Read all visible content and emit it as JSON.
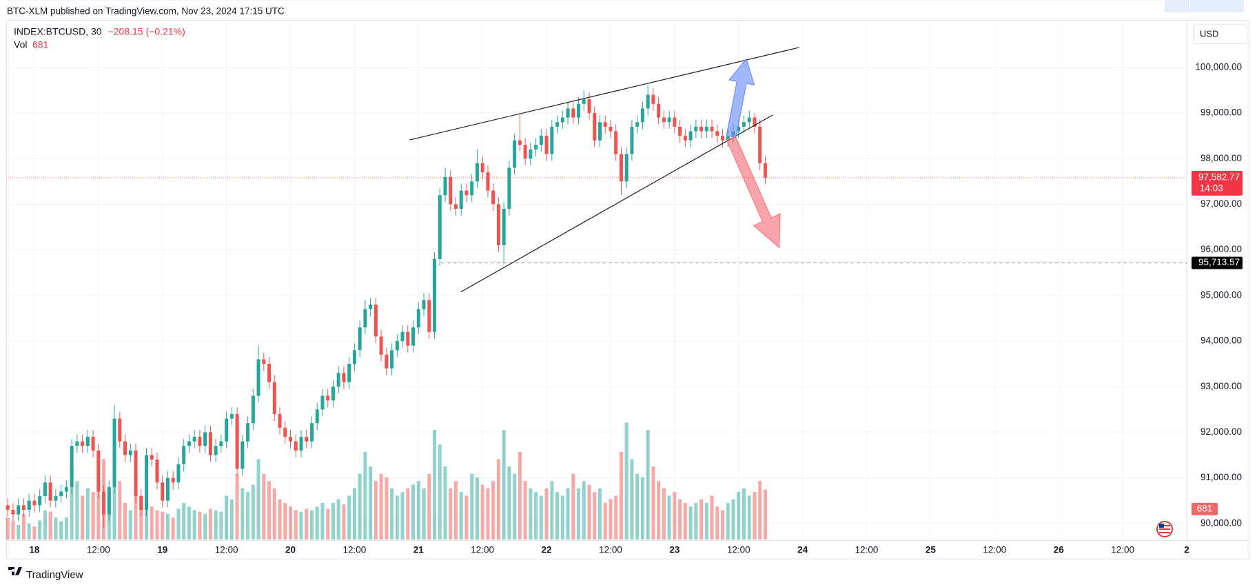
{
  "header": {
    "text": "BTC-XLM published on TradingView.com, Nov 23, 2024 17:15 UTC"
  },
  "footer": {
    "brand": "TradingView"
  },
  "chart_data": {
    "type": "candlestick",
    "symbol": "INDEX:BTCUSD, 30",
    "change": {
      "value": -208.15,
      "label": "−208.15"
    },
    "change_pct": {
      "value": -0.21,
      "label": "(−0.21%)"
    },
    "volume_label": "Vol",
    "volume_last": 681,
    "currency": "USD",
    "high": [
      90550,
      90450,
      90550,
      90550,
      90650,
      90650,
      90750,
      91050,
      91050,
      90750,
      90850,
      90950,
      91850,
      91950,
      91950,
      92050,
      92050,
      91750,
      90850,
      90950,
      92600,
      92450,
      91950,
      91750,
      91750,
      90750,
      91650,
      91650,
      91550,
      91050,
      91150,
      91150,
      91450,
      91850,
      91950,
      92050,
      92050,
      92150,
      92150,
      91850,
      91950,
      92450,
      92550,
      92550,
      91950,
      92350,
      92950,
      93900,
      93750,
      93650,
      93250,
      92550,
      92250,
      92050,
      91950,
      92050,
      92050,
      92350,
      92650,
      92950,
      92950,
      93150,
      93450,
      93450,
      93650,
      93950,
      94450,
      94900,
      94950,
      94950,
      94250,
      93850,
      93950,
      94150,
      94350,
      94350,
      94450,
      94850,
      95050,
      95050,
      95950,
      97350,
      97800,
      97750,
      97150,
      97450,
      97450,
      97650,
      98200,
      98050,
      97850,
      97450,
      97150,
      97050,
      97950,
      98550,
      99000,
      98450,
      98350,
      98450,
      98650,
      98650,
      98850,
      98950,
      99050,
      99250,
      99250,
      99350,
      99500,
      99450,
      99150,
      98950,
      98950,
      98850,
      98750,
      98250,
      98250,
      98850,
      98950,
      99250,
      99609,
      99550,
      99350,
      99050,
      99050,
      99050,
      98850,
      98650,
      98750,
      98850,
      98850,
      98850,
      98850,
      98750,
      98650,
      98650,
      98750,
      98850,
      98950,
      99050,
      99000,
      98850,
      98050
    ],
    "last_price": {
      "value": 97582.77,
      "label": "97,582.77",
      "countdown": "14:03"
    },
    "level": {
      "value": 95713.57,
      "label": "95,713.57"
    },
    "up_color": "#26a69a",
    "down_color": "#ef5350",
    "grid": true,
    "xlim": [
      -4.9,
      216
    ],
    "ylim": [
      89650,
      101040
    ],
    "xticks": [
      {
        "value": 0,
        "label": "18"
      },
      {
        "value": 12,
        "label": "12:00"
      },
      {
        "value": 24,
        "label": "19"
      },
      {
        "value": 36,
        "label": "12:00"
      },
      {
        "value": 48,
        "label": "20"
      },
      {
        "value": 60,
        "label": "12:00"
      },
      {
        "value": 72,
        "label": "21"
      },
      {
        "value": 84,
        "label": "12:00"
      },
      {
        "value": 96,
        "label": "22"
      },
      {
        "value": 108,
        "label": "12:00"
      },
      {
        "value": 120,
        "label": "23"
      },
      {
        "value": 132,
        "label": "12:00"
      },
      {
        "value": 144,
        "label": "24"
      },
      {
        "value": 156,
        "label": "12:00"
      },
      {
        "value": 168,
        "label": "25"
      },
      {
        "value": 180,
        "label": "12:00"
      },
      {
        "value": 192,
        "label": "26"
      },
      {
        "value": 204,
        "label": "12:00"
      },
      {
        "value": 216,
        "label": "2"
      }
    ],
    "yticks": [
      {
        "value": 90000,
        "label": "90,000.00"
      },
      {
        "value": 91000,
        "label": "91,000.00"
      },
      {
        "value": 92000,
        "label": "92,000.00"
      },
      {
        "value": 93000,
        "label": "93,000.00"
      },
      {
        "value": 94000,
        "label": "94,000.00"
      },
      {
        "value": 95000,
        "label": "95,000.00"
      },
      {
        "value": 96000,
        "label": "96,000.00"
      },
      {
        "value": 97000,
        "label": "97,000.00"
      },
      {
        "value": 98000,
        "label": "98,000.00"
      },
      {
        "value": 99000,
        "label": "99,000.00"
      },
      {
        "value": 100000,
        "label": "100,000.00"
      }
    ],
    "x": [
      -5,
      -4,
      -3,
      -2,
      -1,
      0,
      1,
      2,
      3,
      4,
      5,
      6,
      7,
      8,
      9,
      10,
      11,
      12,
      13,
      14,
      15,
      16,
      17,
      18,
      19,
      20,
      21,
      22,
      23,
      24,
      25,
      26,
      27,
      28,
      29,
      30,
      31,
      32,
      33,
      34,
      35,
      36,
      37,
      38,
      39,
      40,
      41,
      42,
      43,
      44,
      45,
      46,
      47,
      48,
      49,
      50,
      51,
      52,
      53,
      54,
      55,
      56,
      57,
      58,
      59,
      60,
      61,
      62,
      63,
      64,
      65,
      66,
      67,
      68,
      69,
      70,
      71,
      72,
      73,
      74,
      75,
      76,
      77,
      78,
      79,
      80,
      81,
      82,
      83,
      84,
      85,
      86,
      87,
      88,
      89,
      90,
      91,
      92,
      93,
      94,
      95,
      96,
      97,
      98,
      99,
      100,
      101,
      102,
      103,
      104,
      105,
      106,
      107,
      108,
      109,
      110,
      111,
      112,
      113,
      114,
      115,
      116,
      117,
      118,
      119,
      120,
      121,
      122,
      123,
      124,
      125,
      126,
      127,
      128,
      129,
      130,
      131,
      132,
      133,
      134,
      135,
      136,
      137
    ],
    "open": [
      90400,
      90300,
      90200,
      90400,
      90300,
      90500,
      90400,
      90600,
      90900,
      90500,
      90600,
      90700,
      90800,
      91700,
      91800,
      91700,
      91900,
      91600,
      90700,
      90200,
      90800,
      92300,
      91800,
      91500,
      91600,
      90600,
      90300,
      91500,
      91400,
      90900,
      90500,
      91000,
      90900,
      91300,
      91700,
      91800,
      91900,
      91700,
      92000,
      91500,
      91700,
      91800,
      92300,
      92400,
      91200,
      91800,
      92200,
      92800,
      93600,
      93500,
      93100,
      92400,
      92100,
      91900,
      91800,
      91600,
      91900,
      91800,
      92200,
      92500,
      92800,
      92700,
      93000,
      93300,
      93100,
      93500,
      93800,
      94300,
      94700,
      94800,
      94100,
      93700,
      93400,
      93800,
      94000,
      94200,
      93900,
      94300,
      94700,
      94900,
      94200,
      95800,
      97200,
      97600,
      97000,
      96900,
      97300,
      97200,
      97500,
      97900,
      97700,
      97300,
      97000,
      96100,
      96900,
      97800,
      98400,
      98300,
      98000,
      98200,
      98300,
      98500,
      98100,
      98700,
      98800,
      98900,
      99100,
      98900,
      99200,
      99300,
      99000,
      98400,
      98800,
      98700,
      98600,
      98100,
      97500,
      98100,
      98700,
      98800,
      99100,
      99400,
      99200,
      98900,
      98800,
      98900,
      98700,
      98500,
      98400,
      98600,
      98700,
      98600,
      98700,
      98600,
      98500,
      98400,
      98500,
      98600,
      98700,
      98800,
      98900,
      98700,
      97900
    ],
    "low": [
      90150,
      90050,
      90050,
      90150,
      90150,
      90250,
      90250,
      90450,
      90350,
      90350,
      90450,
      90550,
      90650,
      91550,
      91550,
      91550,
      91450,
      90550,
      89900,
      90050,
      90650,
      91650,
      91350,
      91350,
      90450,
      90150,
      90150,
      91250,
      90750,
      90350,
      90350,
      90750,
      90750,
      91150,
      91550,
      91650,
      91550,
      91550,
      91350,
      91350,
      91550,
      91650,
      92150,
      91050,
      91050,
      91650,
      92050,
      92650,
      93350,
      92950,
      92250,
      91950,
      91750,
      91650,
      91450,
      91450,
      91650,
      91650,
      92050,
      92350,
      92550,
      92550,
      92850,
      92950,
      92950,
      93350,
      93650,
      94150,
      94550,
      93950,
      93550,
      93250,
      93250,
      93650,
      93850,
      93750,
      93750,
      94150,
      94550,
      94050,
      94050,
      95650,
      97050,
      96850,
      96750,
      96750,
      97050,
      97050,
      97350,
      97550,
      97150,
      96850,
      95950,
      95700,
      96750,
      97650,
      98150,
      97850,
      97850,
      98050,
      98150,
      97950,
      97950,
      98550,
      98650,
      98750,
      98750,
      98750,
      99050,
      98850,
      98250,
      98250,
      98550,
      98450,
      97950,
      97200,
      97350,
      97950,
      98550,
      98650,
      98950,
      99050,
      98750,
      98650,
      98650,
      98550,
      98350,
      98250,
      98250,
      98450,
      98450,
      98450,
      98450,
      98350,
      98250,
      98250,
      98350,
      98450,
      98550,
      98650,
      98550,
      97750,
      97450
    ],
    "close": [
      90300,
      90200,
      90400,
      90300,
      90500,
      90400,
      90600,
      90900,
      90500,
      90600,
      90700,
      90800,
      91700,
      91800,
      91700,
      91900,
      91600,
      90700,
      90200,
      90800,
      92300,
      91800,
      91500,
      91600,
      90600,
      90300,
      91500,
      91400,
      90900,
      90500,
      91000,
      90900,
      91300,
      91700,
      91800,
      91900,
      91700,
      92000,
      91500,
      91700,
      91800,
      92300,
      92400,
      91200,
      91800,
      92200,
      92800,
      93600,
      93500,
      93100,
      92400,
      92100,
      91900,
      91800,
      91600,
      91900,
      91800,
      92200,
      92500,
      92800,
      92700,
      93000,
      93300,
      93100,
      93500,
      93800,
      94300,
      94700,
      94800,
      94100,
      93700,
      93400,
      93800,
      94000,
      94200,
      93900,
      94300,
      94700,
      94900,
      94200,
      95800,
      97200,
      97600,
      97000,
      96900,
      97300,
      97200,
      97500,
      97900,
      97700,
      97300,
      97000,
      96100,
      96900,
      97800,
      98400,
      98300,
      98000,
      98200,
      98300,
      98500,
      98100,
      98700,
      98800,
      98900,
      99100,
      98900,
      99200,
      99300,
      99000,
      98400,
      98800,
      98700,
      98600,
      98100,
      97500,
      98100,
      98700,
      98800,
      99100,
      99400,
      99200,
      98900,
      98800,
      98900,
      98700,
      98500,
      98400,
      98600,
      98700,
      98600,
      98700,
      98600,
      98500,
      98400,
      98500,
      98600,
      98700,
      98800,
      98900,
      98700,
      97900,
      97583
    ],
    "volume": [
      300,
      250,
      200,
      350,
      220,
      180,
      260,
      400,
      380,
      300,
      250,
      300,
      1000,
      800,
      600,
      700,
      650,
      900,
      1100,
      700,
      1200,
      800,
      500,
      400,
      700,
      600,
      500,
      450,
      400,
      380,
      350,
      300,
      420,
      500,
      450,
      400,
      380,
      350,
      420,
      400,
      380,
      600,
      550,
      900,
      700,
      650,
      750,
      1100,
      900,
      800,
      700,
      550,
      500,
      450,
      400,
      380,
      420,
      400,
      450,
      500,
      420,
      500,
      550,
      480,
      600,
      700,
      900,
      1200,
      1000,
      800,
      900,
      850,
      700,
      600,
      650,
      700,
      750,
      800,
      700,
      900,
      1500,
      1300,
      1000,
      700,
      800,
      650,
      600,
      900,
      850,
      750,
      700,
      800,
      1100,
      1500,
      1000,
      900,
      1200,
      800,
      700,
      650,
      600,
      700,
      800,
      650,
      600,
      700,
      900,
      700,
      800,
      750,
      650,
      700,
      500,
      550,
      600,
      1200,
      1600,
      1100,
      900,
      850,
      1500,
      1000,
      800,
      700,
      600,
      650,
      550,
      500,
      450,
      500,
      550,
      500,
      600,
      450,
      400,
      500,
      550,
      650,
      700,
      600,
      650,
      800,
      681
    ]
  }
}
